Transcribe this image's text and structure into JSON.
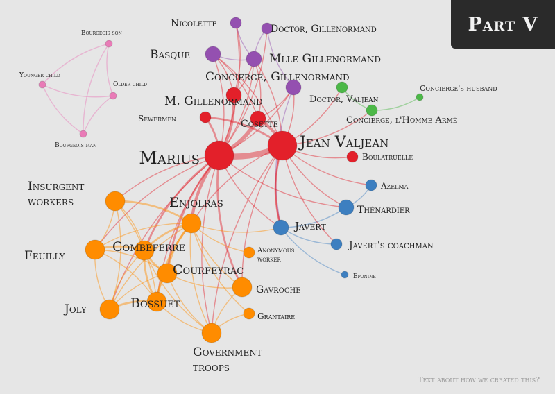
{
  "part": {
    "title": "Part V"
  },
  "about_link": "Text about how we created this?",
  "colors": {
    "red": "#e3202a",
    "orange": "#ff8c00",
    "purple": "#9450b0",
    "blue": "#3d7fc0",
    "green": "#4cb848",
    "pink": "#e97bb7"
  },
  "nodes": [
    {
      "id": "marius",
      "name": "Marius",
      "group": "red",
      "size": "xl"
    },
    {
      "id": "valjean",
      "name": "Jean Valjean",
      "group": "red",
      "size": "xl"
    },
    {
      "id": "cosette",
      "name": "Cosette",
      "group": "red",
      "size": "s"
    },
    {
      "id": "mgillenormand",
      "name": "M. Gillenormand",
      "group": "red",
      "size": "s"
    },
    {
      "id": "sewermen",
      "name": "Sewermen",
      "group": "red",
      "size": "xs"
    },
    {
      "id": "boulatruelle",
      "name": "Boulatruelle",
      "group": "red",
      "size": "xs"
    },
    {
      "id": "nicolette",
      "name": "Nicolette",
      "group": "purple",
      "size": "xs"
    },
    {
      "id": "basque",
      "name": "Basque",
      "group": "purple",
      "size": "s"
    },
    {
      "id": "mlle",
      "name": "Mlle Gillenormand",
      "group": "purple",
      "size": "s"
    },
    {
      "id": "doctorg",
      "name": "Doctor, Gillenormand",
      "group": "purple",
      "size": "xs"
    },
    {
      "id": "conciergeg",
      "name": "Concierge, Gillenormand",
      "group": "purple",
      "size": "s"
    },
    {
      "id": "doctorv",
      "name": "Doctor, Valjean",
      "group": "green",
      "size": "xs"
    },
    {
      "id": "conciergehusband",
      "name": "Concierge's husband",
      "group": "green",
      "size": "xxs"
    },
    {
      "id": "conciergehomme",
      "name": "Concierge, l'Homme Armé",
      "group": "green",
      "size": "xs"
    },
    {
      "id": "bourgeoisson",
      "name": "Bourgeois son",
      "group": "pink",
      "size": "xxs"
    },
    {
      "id": "youngerchild",
      "name": "Younger child",
      "group": "pink",
      "size": "xxs"
    },
    {
      "id": "olderchild",
      "name": "Older child",
      "group": "pink",
      "size": "xxs"
    },
    {
      "id": "bourgeoisman",
      "name": "Bourgeois man",
      "group": "pink",
      "size": "xxs"
    },
    {
      "id": "azelma",
      "name": "Azelma",
      "group": "blue",
      "size": "xs"
    },
    {
      "id": "thenardier",
      "name": "Thénardier",
      "group": "blue",
      "size": "s"
    },
    {
      "id": "javert",
      "name": "Javert",
      "group": "blue",
      "size": "s"
    },
    {
      "id": "javertcoach",
      "name": "Javert's coachman",
      "group": "blue",
      "size": "xs"
    },
    {
      "id": "eponine",
      "name": "Eponine",
      "group": "blue",
      "size": "xxs"
    },
    {
      "id": "insurgents",
      "name": "Insurgent workers",
      "group": "orange",
      "size": "m"
    },
    {
      "id": "enjolras",
      "name": "Enjolras",
      "group": "orange",
      "size": "m"
    },
    {
      "id": "combeferre",
      "name": "Combeferre",
      "group": "orange",
      "size": "m"
    },
    {
      "id": "feuilly",
      "name": "Feuilly",
      "group": "orange",
      "size": "m"
    },
    {
      "id": "courfeyrac",
      "name": "Courfeyrac",
      "group": "orange",
      "size": "m"
    },
    {
      "id": "anonworker",
      "name": "Anonymous worker",
      "group": "orange",
      "size": "xs"
    },
    {
      "id": "gavroche",
      "name": "Gavroche",
      "group": "orange",
      "size": "m"
    },
    {
      "id": "joly",
      "name": "Joly",
      "group": "orange",
      "size": "m"
    },
    {
      "id": "bossuet",
      "name": "Bossuet",
      "group": "orange",
      "size": "m"
    },
    {
      "id": "grantaire",
      "name": "Grantaire",
      "group": "orange",
      "size": "xs"
    },
    {
      "id": "govtroops",
      "name": "Government troops",
      "group": "orange",
      "size": "m"
    }
  ],
  "edges": [
    [
      "marius",
      "valjean",
      6
    ],
    [
      "marius",
      "cosette",
      4
    ],
    [
      "valjean",
      "cosette",
      3
    ],
    [
      "marius",
      "mgillenormand",
      3
    ],
    [
      "marius",
      "sewermen",
      2
    ],
    [
      "valjean",
      "sewermen",
      2
    ],
    [
      "marius",
      "basque",
      1
    ],
    [
      "marius",
      "mlle",
      1
    ],
    [
      "marius",
      "nicolette",
      1
    ],
    [
      "marius",
      "conciergeg",
      1
    ],
    [
      "marius",
      "doctorg",
      1
    ],
    [
      "valjean",
      "mlle",
      1
    ],
    [
      "valjean",
      "basque",
      1
    ],
    [
      "valjean",
      "conciergeg",
      1
    ],
    [
      "mgillenormand",
      "mlle",
      1
    ],
    [
      "mgillenormand",
      "basque",
      1
    ],
    [
      "mgillenormand",
      "nicolette",
      1
    ],
    [
      "cosette",
      "mlle",
      1
    ],
    [
      "cosette",
      "basque",
      1
    ],
    [
      "cosette",
      "conciergeg",
      1
    ],
    [
      "basque",
      "mlle",
      1
    ],
    [
      "nicolette",
      "mlle",
      1
    ],
    [
      "doctorg",
      "mlle",
      1
    ],
    [
      "doctorg",
      "conciergeg",
      1
    ],
    [
      "valjean",
      "doctorv",
      1
    ],
    [
      "valjean",
      "conciergehomme",
      1
    ],
    [
      "doctorv",
      "conciergehomme",
      1
    ],
    [
      "conciergehomme",
      "conciergehusband",
      1
    ],
    [
      "conciergeg",
      "javert",
      1
    ],
    [
      "valjean",
      "boulatruelle",
      1
    ],
    [
      "valjean",
      "thenardier",
      1
    ],
    [
      "valjean",
      "javert",
      2
    ],
    [
      "valjean",
      "azelma",
      1
    ],
    [
      "marius",
      "thenardier",
      1
    ],
    [
      "marius",
      "javert",
      1
    ],
    [
      "javert",
      "javertcoach",
      1
    ],
    [
      "javert",
      "thenardier",
      1
    ],
    [
      "javert",
      "eponine",
      1
    ],
    [
      "thenardier",
      "azelma",
      1
    ],
    [
      "valjean",
      "javertcoach",
      1
    ],
    [
      "bourgeoisson",
      "youngerchild",
      1
    ],
    [
      "bourgeoisson",
      "olderchild",
      1
    ],
    [
      "bourgeoisson",
      "bourgeoisman",
      1
    ],
    [
      "youngerchild",
      "olderchild",
      1
    ],
    [
      "youngerchild",
      "bourgeoisman",
      1
    ],
    [
      "olderchild",
      "bourgeoisman",
      1
    ],
    [
      "marius",
      "enjolras",
      3
    ],
    [
      "marius",
      "courfeyrac",
      2
    ],
    [
      "marius",
      "combeferre",
      2
    ],
    [
      "marius",
      "gavroche",
      2
    ],
    [
      "marius",
      "bossuet",
      1
    ],
    [
      "marius",
      "joly",
      1
    ],
    [
      "marius",
      "feuilly",
      1
    ],
    [
      "marius",
      "insurgents",
      1
    ],
    [
      "marius",
      "govtroops",
      1
    ],
    [
      "valjean",
      "enjolras",
      1
    ],
    [
      "valjean",
      "javert",
      1
    ],
    [
      "valjean",
      "govtroops",
      1
    ],
    [
      "valjean",
      "gavroche",
      1
    ],
    [
      "enjolras",
      "javert",
      1
    ],
    [
      "enjolras",
      "combeferre",
      2
    ],
    [
      "enjolras",
      "courfeyrac",
      2
    ],
    [
      "enjolras",
      "insurgents",
      2
    ],
    [
      "enjolras",
      "feuilly",
      1
    ],
    [
      "enjolras",
      "bossuet",
      2
    ],
    [
      "enjolras",
      "joly",
      1
    ],
    [
      "enjolras",
      "gavroche",
      1
    ],
    [
      "enjolras",
      "govtroops",
      1
    ],
    [
      "enjolras",
      "grantaire",
      1
    ],
    [
      "enjolras",
      "anonworker",
      1
    ],
    [
      "combeferre",
      "courfeyrac",
      2
    ],
    [
      "combeferre",
      "feuilly",
      2
    ],
    [
      "combeferre",
      "bossuet",
      2
    ],
    [
      "combeferre",
      "joly",
      1
    ],
    [
      "combeferre",
      "insurgents",
      1
    ],
    [
      "combeferre",
      "govtroops",
      1
    ],
    [
      "courfeyrac",
      "bossuet",
      2
    ],
    [
      "courfeyrac",
      "gavroche",
      1
    ],
    [
      "courfeyrac",
      "govtroops",
      1
    ],
    [
      "courfeyrac",
      "feuilly",
      1
    ],
    [
      "courfeyrac",
      "joly",
      1
    ],
    [
      "bossuet",
      "joly",
      2
    ],
    [
      "bossuet",
      "govtroops",
      1
    ],
    [
      "bossuet",
      "feuilly",
      1
    ],
    [
      "bossuet",
      "insurgents",
      1
    ],
    [
      "feuilly",
      "joly",
      1
    ],
    [
      "feuilly",
      "insurgents",
      1
    ],
    [
      "joly",
      "insurgents",
      1
    ],
    [
      "gavroche",
      "govtroops",
      1
    ],
    [
      "grantaire",
      "govtroops",
      1
    ]
  ]
}
